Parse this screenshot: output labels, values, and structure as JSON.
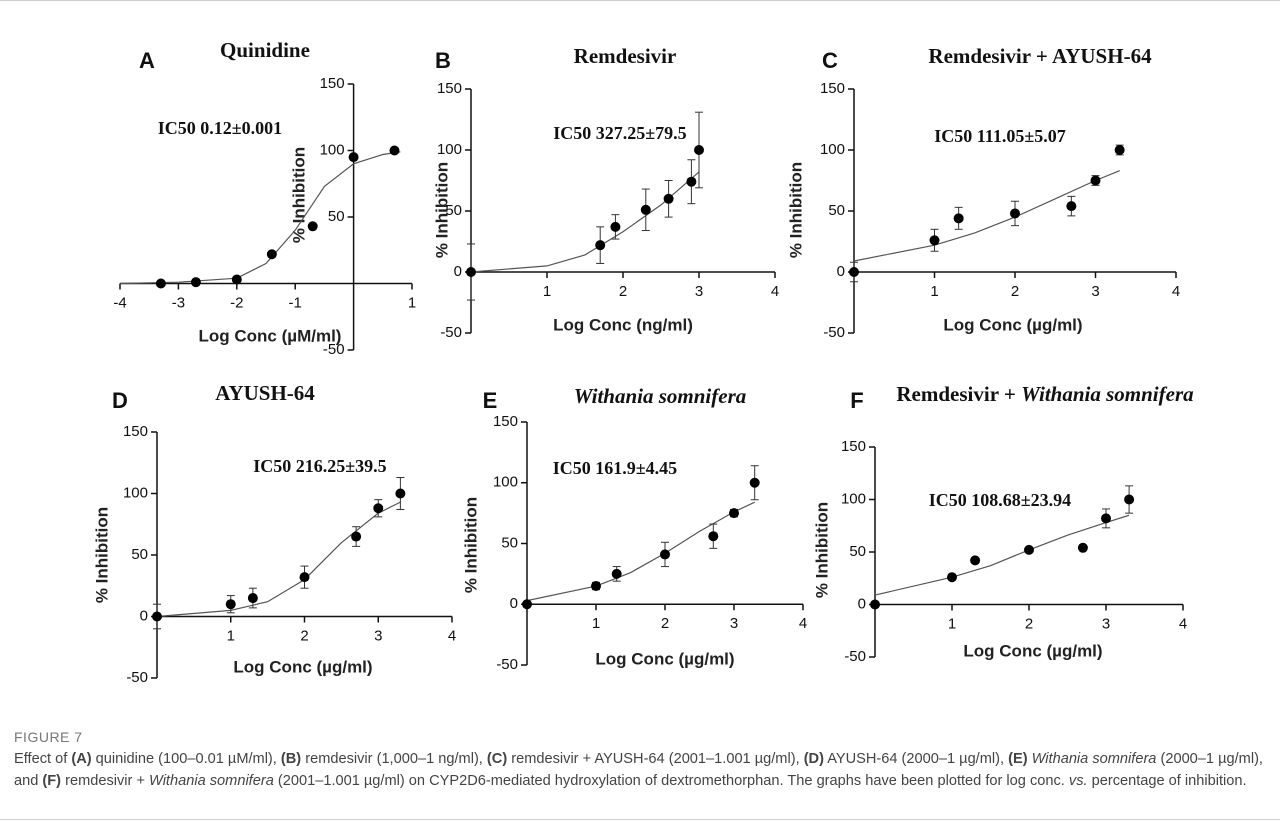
{
  "chart_data": [
    {
      "type": "scatter",
      "label": "A",
      "title": [
        {
          "text": "Quinidine"
        }
      ],
      "annotation": "IC50 0.12±0.001",
      "x_label": "Log Conc (µM/ml)",
      "y_label": "% Inhibition",
      "xlim": [
        -4,
        1
      ],
      "xticks": [
        -4,
        -3,
        -2,
        -1,
        1
      ],
      "ylim": [
        -50,
        150
      ],
      "yticks": [
        -50,
        50,
        100,
        150
      ],
      "x": [
        -3.3,
        -2.7,
        -2,
        -1.4,
        -0.7,
        0,
        0.7
      ],
      "values": [
        0,
        1,
        3,
        22,
        43,
        95,
        100
      ],
      "curve": {
        "x": [
          -4,
          -3,
          -2,
          -1.5,
          -1,
          -0.5,
          0,
          0.5,
          0.8
        ],
        "values": [
          0,
          1,
          4,
          15,
          40,
          73,
          90,
          97,
          99
        ]
      }
    },
    {
      "type": "scatter",
      "label": "B",
      "title": [
        {
          "text": "Remdesivir"
        }
      ],
      "annotation": "IC50 327.25±79.5",
      "x_label": "Log Conc (ng/ml)",
      "y_label": "% Inhibition",
      "xlim": [
        0,
        4
      ],
      "xticks": [
        1,
        2,
        3,
        4
      ],
      "ylim": [
        -50,
        150
      ],
      "yticks": [
        -50,
        0,
        50,
        100,
        150
      ],
      "x": [
        0,
        1.7,
        1.9,
        2.3,
        2.6,
        2.9,
        3
      ],
      "values": [
        0,
        22,
        37,
        51,
        60,
        74,
        100
      ],
      "errors": [
        23,
        15,
        10,
        17,
        15,
        18,
        31
      ],
      "curve": {
        "x": [
          0,
          1,
          1.5,
          2,
          2.5,
          3
        ],
        "values": [
          0,
          5,
          14,
          33,
          55,
          82
        ]
      }
    },
    {
      "type": "scatter",
      "label": "C",
      "title": [
        {
          "text": "Remdesivir + AYUSH-64"
        }
      ],
      "annotation": "IC50 111.05±5.07",
      "x_label": "Log Conc (µg/ml)",
      "y_label": "% Inhibition",
      "xlim": [
        0,
        4
      ],
      "xticks": [
        1,
        2,
        3,
        4
      ],
      "ylim": [
        -50,
        150
      ],
      "yticks": [
        -50,
        0,
        50,
        100,
        150
      ],
      "x": [
        0,
        1,
        1.3,
        2,
        2.7,
        3,
        3.3
      ],
      "values": [
        0,
        26,
        44,
        48,
        54,
        75,
        100
      ],
      "errors": [
        8,
        9,
        9,
        10,
        8,
        4,
        4
      ],
      "curve": {
        "x": [
          0,
          1,
          1.5,
          2,
          2.5,
          3,
          3.3
        ],
        "values": [
          9,
          22,
          32,
          45,
          60,
          75,
          83
        ]
      }
    },
    {
      "type": "scatter",
      "label": "D",
      "title": [
        {
          "text": "AYUSH-64"
        }
      ],
      "annotation": "IC50 216.25±39.5",
      "x_label": "Log Conc (µg/ml)",
      "y_label": "% Inhibition",
      "xlim": [
        0,
        4
      ],
      "xticks": [
        1,
        2,
        3,
        4
      ],
      "ylim": [
        -50,
        150
      ],
      "yticks": [
        -50,
        0,
        50,
        100,
        150
      ],
      "x": [
        0,
        1,
        1.3,
        2,
        2.7,
        3,
        3.3
      ],
      "values": [
        0,
        10,
        15,
        32,
        65,
        88,
        100
      ],
      "errors": [
        10,
        7,
        8,
        9,
        8,
        7,
        13
      ],
      "curve": {
        "x": [
          0,
          1,
          1.5,
          2,
          2.5,
          3,
          3.3
        ],
        "values": [
          0,
          5,
          12,
          30,
          60,
          84,
          93
        ]
      }
    },
    {
      "type": "scatter",
      "label": "E",
      "title": [
        {
          "text": "Withania somnifera",
          "italic": true
        }
      ],
      "annotation": "IC50 161.9±4.45",
      "x_label": "Log Conc (µg/ml)",
      "y_label": "% Inhibition",
      "xlim": [
        0,
        4
      ],
      "xticks": [
        1,
        2,
        3,
        4
      ],
      "ylim": [
        -50,
        150
      ],
      "yticks": [
        -50,
        0,
        50,
        100,
        150
      ],
      "x": [
        0,
        1,
        1.3,
        2,
        2.7,
        3,
        3.3
      ],
      "values": [
        0,
        15,
        25,
        41,
        56,
        75,
        100
      ],
      "errors": [
        null,
        3,
        6,
        10,
        10,
        3,
        14
      ],
      "curve": {
        "x": [
          0,
          1,
          1.5,
          2,
          2.5,
          3,
          3.3
        ],
        "values": [
          3,
          15,
          26,
          42,
          60,
          76,
          84
        ]
      }
    },
    {
      "type": "scatter",
      "label": "F",
      "title": [
        {
          "text": "Remdesivir + "
        },
        {
          "text": "Withania somnifera",
          "italic": true
        }
      ],
      "annotation": "IC50 108.68±23.94",
      "x_label": "Log Conc (µg/ml)",
      "y_label": "% Inhibition",
      "xlim": [
        0,
        4
      ],
      "xticks": [
        1,
        2,
        3,
        4
      ],
      "ylim": [
        -50,
        150
      ],
      "yticks": [
        -50,
        0,
        50,
        100,
        150
      ],
      "x": [
        0,
        1,
        1.3,
        2,
        2.7,
        3,
        3.3
      ],
      "values": [
        0,
        26,
        42,
        52,
        54,
        82,
        100
      ],
      "errors": [
        null,
        null,
        null,
        null,
        null,
        9,
        13
      ],
      "curve": {
        "x": [
          0,
          1,
          1.5,
          2,
          2.5,
          3,
          3.3
        ],
        "values": [
          9,
          26,
          37,
          52,
          66,
          78,
          85
        ]
      }
    }
  ],
  "figure": {
    "label": "FIGURE 7",
    "caption": [
      {
        "text": "Effect of "
      },
      {
        "text": "(A)",
        "bold": true
      },
      {
        "text": " quinidine (100–0.01 µM/ml), "
      },
      {
        "text": "(B)",
        "bold": true
      },
      {
        "text": " remdesivir (1,000–1 ng/ml), "
      },
      {
        "text": "(C)",
        "bold": true
      },
      {
        "text": " remdesivir + AYUSH-64 (2001–1.001 µg/ml), "
      },
      {
        "text": "(D)",
        "bold": true
      },
      {
        "text": " AYUSH-64 (2000–1 µg/ml), "
      },
      {
        "text": "(E)",
        "bold": true
      },
      {
        "text": " "
      },
      {
        "text": "Withania somnifera",
        "italic": true
      },
      {
        "text": " (2000–1 µg/ml), and "
      },
      {
        "text": "(F)",
        "bold": true
      },
      {
        "text": " remdesivir + "
      },
      {
        "text": "Withania somnifera",
        "italic": true
      },
      {
        "text": " (2001–1.001 µg/ml) on CYP2D6-mediated hydroxylation of dextromethorphan. The graphs have been plotted for log conc. "
      },
      {
        "text": "vs.",
        "italic": true
      },
      {
        "text": " percentage of inhibition."
      }
    ]
  }
}
